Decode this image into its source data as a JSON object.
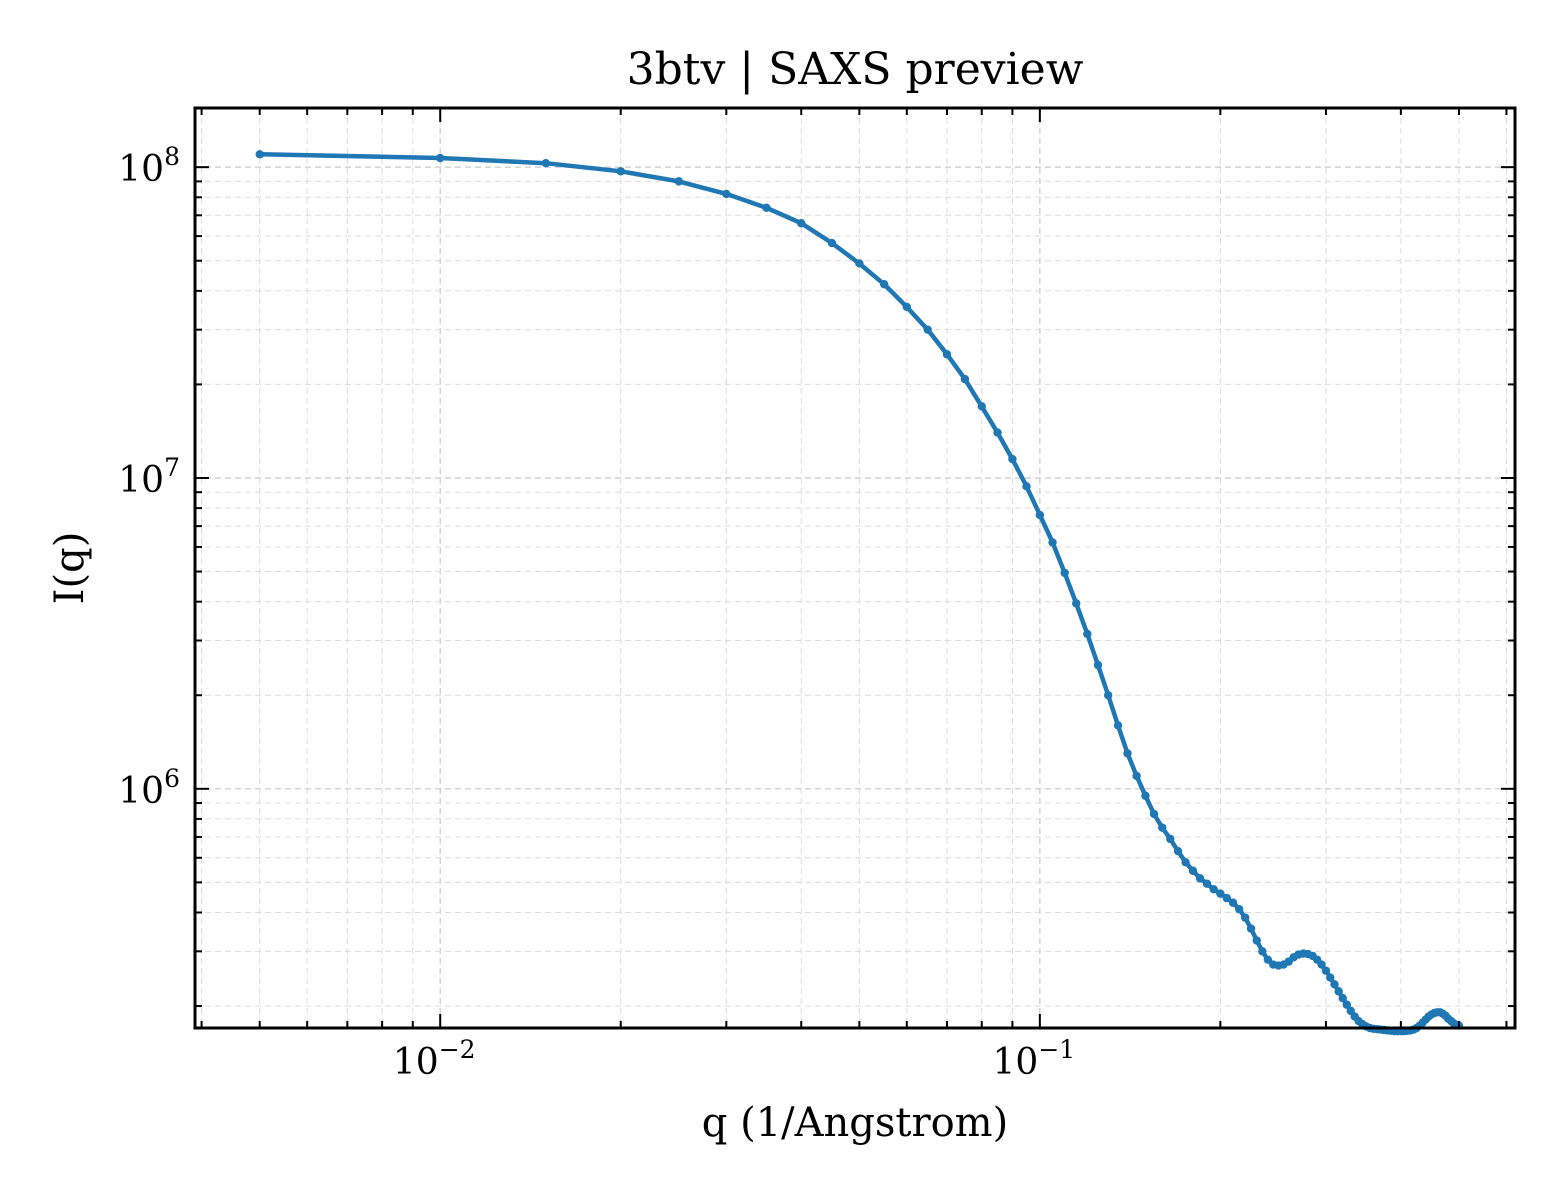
{
  "chart_data": {
    "type": "line",
    "title": "3btv | SAXS preview",
    "xlabel": "q (1/Angstrom)",
    "ylabel": "I(q)",
    "xscale": "log",
    "yscale": "log",
    "xlim": [
      0.0039,
      0.62
    ],
    "ylim": [
      170000,
      155000000
    ],
    "grid": true,
    "x_ticks": [
      {
        "value": 0.01,
        "base": "10",
        "exp": "−2"
      },
      {
        "value": 0.1,
        "base": "10",
        "exp": "−1"
      }
    ],
    "y_ticks": [
      {
        "value": 1000000,
        "base": "10",
        "exp": "6"
      },
      {
        "value": 10000000,
        "base": "10",
        "exp": "7"
      },
      {
        "value": 100000000,
        "base": "10",
        "exp": "8"
      }
    ],
    "series": [
      {
        "color": "#1f77b4",
        "marker": "dot",
        "x": [
          0.005,
          0.01,
          0.015,
          0.02,
          0.025,
          0.03,
          0.035,
          0.04,
          0.045,
          0.05,
          0.055,
          0.06,
          0.065,
          0.07,
          0.075,
          0.08,
          0.085,
          0.09,
          0.095,
          0.1,
          0.105,
          0.11,
          0.115,
          0.12,
          0.125,
          0.13,
          0.135,
          0.14,
          0.145,
          0.15,
          0.155,
          0.16,
          0.165,
          0.17,
          0.175,
          0.18,
          0.185,
          0.19,
          0.195,
          0.2,
          0.205,
          0.21,
          0.215,
          0.22,
          0.225,
          0.23,
          0.235,
          0.24,
          0.245,
          0.25,
          0.255,
          0.26,
          0.265,
          0.27,
          0.275,
          0.28,
          0.285,
          0.29,
          0.295,
          0.3,
          0.305,
          0.31,
          0.315,
          0.32,
          0.325,
          0.33,
          0.335,
          0.34,
          0.345,
          0.35,
          0.355,
          0.36,
          0.365,
          0.37,
          0.375,
          0.38,
          0.385,
          0.39,
          0.395,
          0.4,
          0.405,
          0.41,
          0.415,
          0.42,
          0.425,
          0.43,
          0.435,
          0.44,
          0.445,
          0.45,
          0.455,
          0.46,
          0.465,
          0.47,
          0.475,
          0.48,
          0.485,
          0.49,
          0.495,
          0.5
        ],
        "y": [
          110000000,
          107000000,
          103000000,
          97000000,
          90000000,
          82000000,
          74000000,
          66000000,
          57000000,
          49000000,
          42000000,
          35500000,
          30000000,
          25000000,
          20800000,
          17000000,
          14000000,
          11500000,
          9400000,
          7600000,
          6200000,
          4950000,
          3950000,
          3150000,
          2500000,
          2000000,
          1600000,
          1300000,
          1100000,
          950000,
          830000,
          750000,
          690000,
          630000,
          580000,
          545000,
          515000,
          495000,
          475000,
          460000,
          445000,
          430000,
          410000,
          385000,
          355000,
          325000,
          300000,
          282000,
          272000,
          270000,
          272000,
          278000,
          287000,
          293000,
          295000,
          294000,
          290000,
          282000,
          272000,
          260000,
          247000,
          235000,
          223000,
          212000,
          202000,
          193000,
          185000,
          179000,
          175000,
          172000,
          170000,
          169000,
          168500,
          168000,
          167500,
          167000,
          166500,
          166000,
          166000,
          166000,
          166000,
          166500,
          167000,
          168000,
          170000,
          173000,
          177000,
          181000,
          185000,
          188000,
          190000,
          191000,
          191000,
          189000,
          186000,
          182000,
          179000,
          176000,
          174000,
          173000
        ]
      }
    ]
  }
}
